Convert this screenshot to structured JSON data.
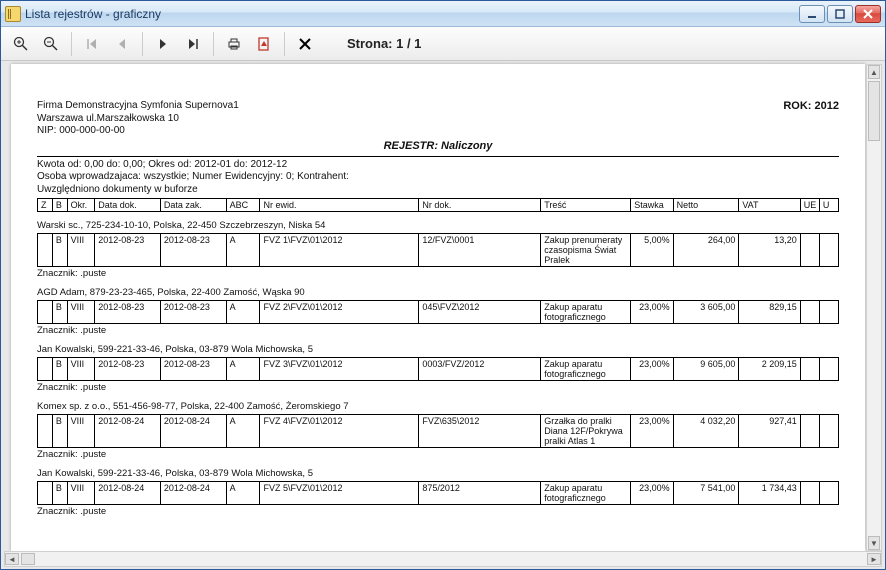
{
  "window": {
    "title": "Lista rejestrów - graficzny"
  },
  "toolbar": {
    "page_label": "Strona: 1 / 1"
  },
  "report": {
    "company_name": "Firma Demonstracyjna Symfonia Supernova1",
    "company_addr": "Warszawa ul.Marszałkowska 10",
    "company_nip": "NIP: 000-000-00-00",
    "rok": "ROK: 2012",
    "rejestr": "REJESTR: Naliczony",
    "filter1": "Kwota od: 0,00  do: 0,00; Okres od: 2012-01 do: 2012-12",
    "filter2": "Osoba wprowadzajaca: wszystkie; Numer Ewidencyjny: 0; Kontrahent:",
    "filter3": "Uwzględniono dokumenty w buforze",
    "columns": [
      "Z",
      "B",
      "Okr.",
      "Data dok.",
      "Data zak.",
      "ABC",
      "Nr ewid.",
      "Nr dok.",
      "Treść",
      "Stawka",
      "Netto",
      "VAT",
      "UE",
      "U"
    ],
    "znacznik_label": "Znacznik: .puste",
    "groups": [
      {
        "customer": "Warski sc., 725-234-10-10, Polska, 22-450 Szczebrzeszyn, Niska 54",
        "rows": [
          {
            "z": "",
            "b": "B",
            "okr": "VIII",
            "ddok": "2012-08-23",
            "dzak": "2012-08-23",
            "abc": "A",
            "nrew": "FVZ  1\\FVZ\\01\\2012",
            "nrdok": "12/FVZ\\0001",
            "tresc": "Zakup prenumeraty czasopisma Świat Pralek",
            "stawka": "5,00%",
            "netto": "264,00",
            "vat": "13,20",
            "ue": "",
            "u": ""
          }
        ]
      },
      {
        "customer": "AGD Adam, 879-23-23-465, Polska, 22-400 Zamość, Wąska 90",
        "rows": [
          {
            "z": "",
            "b": "B",
            "okr": "VIII",
            "ddok": "2012-08-23",
            "dzak": "2012-08-23",
            "abc": "A",
            "nrew": "FVZ  2\\FVZ\\01\\2012",
            "nrdok": "045\\FVZ\\2012",
            "tresc": "Zakup aparatu fotograficznego",
            "stawka": "23,00%",
            "netto": "3 605,00",
            "vat": "829,15",
            "ue": "",
            "u": ""
          }
        ]
      },
      {
        "customer": "Jan Kowalski, 599-221-33-46, Polska, 03-879 Wola Michowska,  5",
        "rows": [
          {
            "z": "",
            "b": "B",
            "okr": "VIII",
            "ddok": "2012-08-23",
            "dzak": "2012-08-23",
            "abc": "A",
            "nrew": "FVZ  3\\FVZ\\01\\2012",
            "nrdok": "0003/FVZ/2012",
            "tresc": "Zakup aparatu fotograficznego",
            "stawka": "23,00%",
            "netto": "9 605,00",
            "vat": "2 209,15",
            "ue": "",
            "u": ""
          }
        ]
      },
      {
        "customer": "Komex sp. z o.o., 551-456-98-77, Polska, 22-400 Zamość, Żeromskiego 7",
        "rows": [
          {
            "z": "",
            "b": "B",
            "okr": "VIII",
            "ddok": "2012-08-24",
            "dzak": "2012-08-24",
            "abc": "A",
            "nrew": "FVZ  4\\FVZ\\01\\2012",
            "nrdok": "FVZ\\635\\2012",
            "tresc": "Grzałka do pralki Diana 12F/Pokrywa pralki Atlas 1",
            "stawka": "23,00%",
            "netto": "4 032,20",
            "vat": "927,41",
            "ue": "",
            "u": ""
          }
        ]
      },
      {
        "customer": "Jan Kowalski, 599-221-33-46, Polska, 03-879 Wola Michowska,  5",
        "rows": [
          {
            "z": "",
            "b": "B",
            "okr": "VIII",
            "ddok": "2012-08-24",
            "dzak": "2012-08-24",
            "abc": "A",
            "nrew": "FVZ  5\\FVZ\\01\\2012",
            "nrdok": "875/2012",
            "tresc": "Zakup aparatu fotograficznego",
            "stawka": "23,00%",
            "netto": "7 541,00",
            "vat": "1 734,43",
            "ue": "",
            "u": ""
          }
        ]
      }
    ]
  }
}
